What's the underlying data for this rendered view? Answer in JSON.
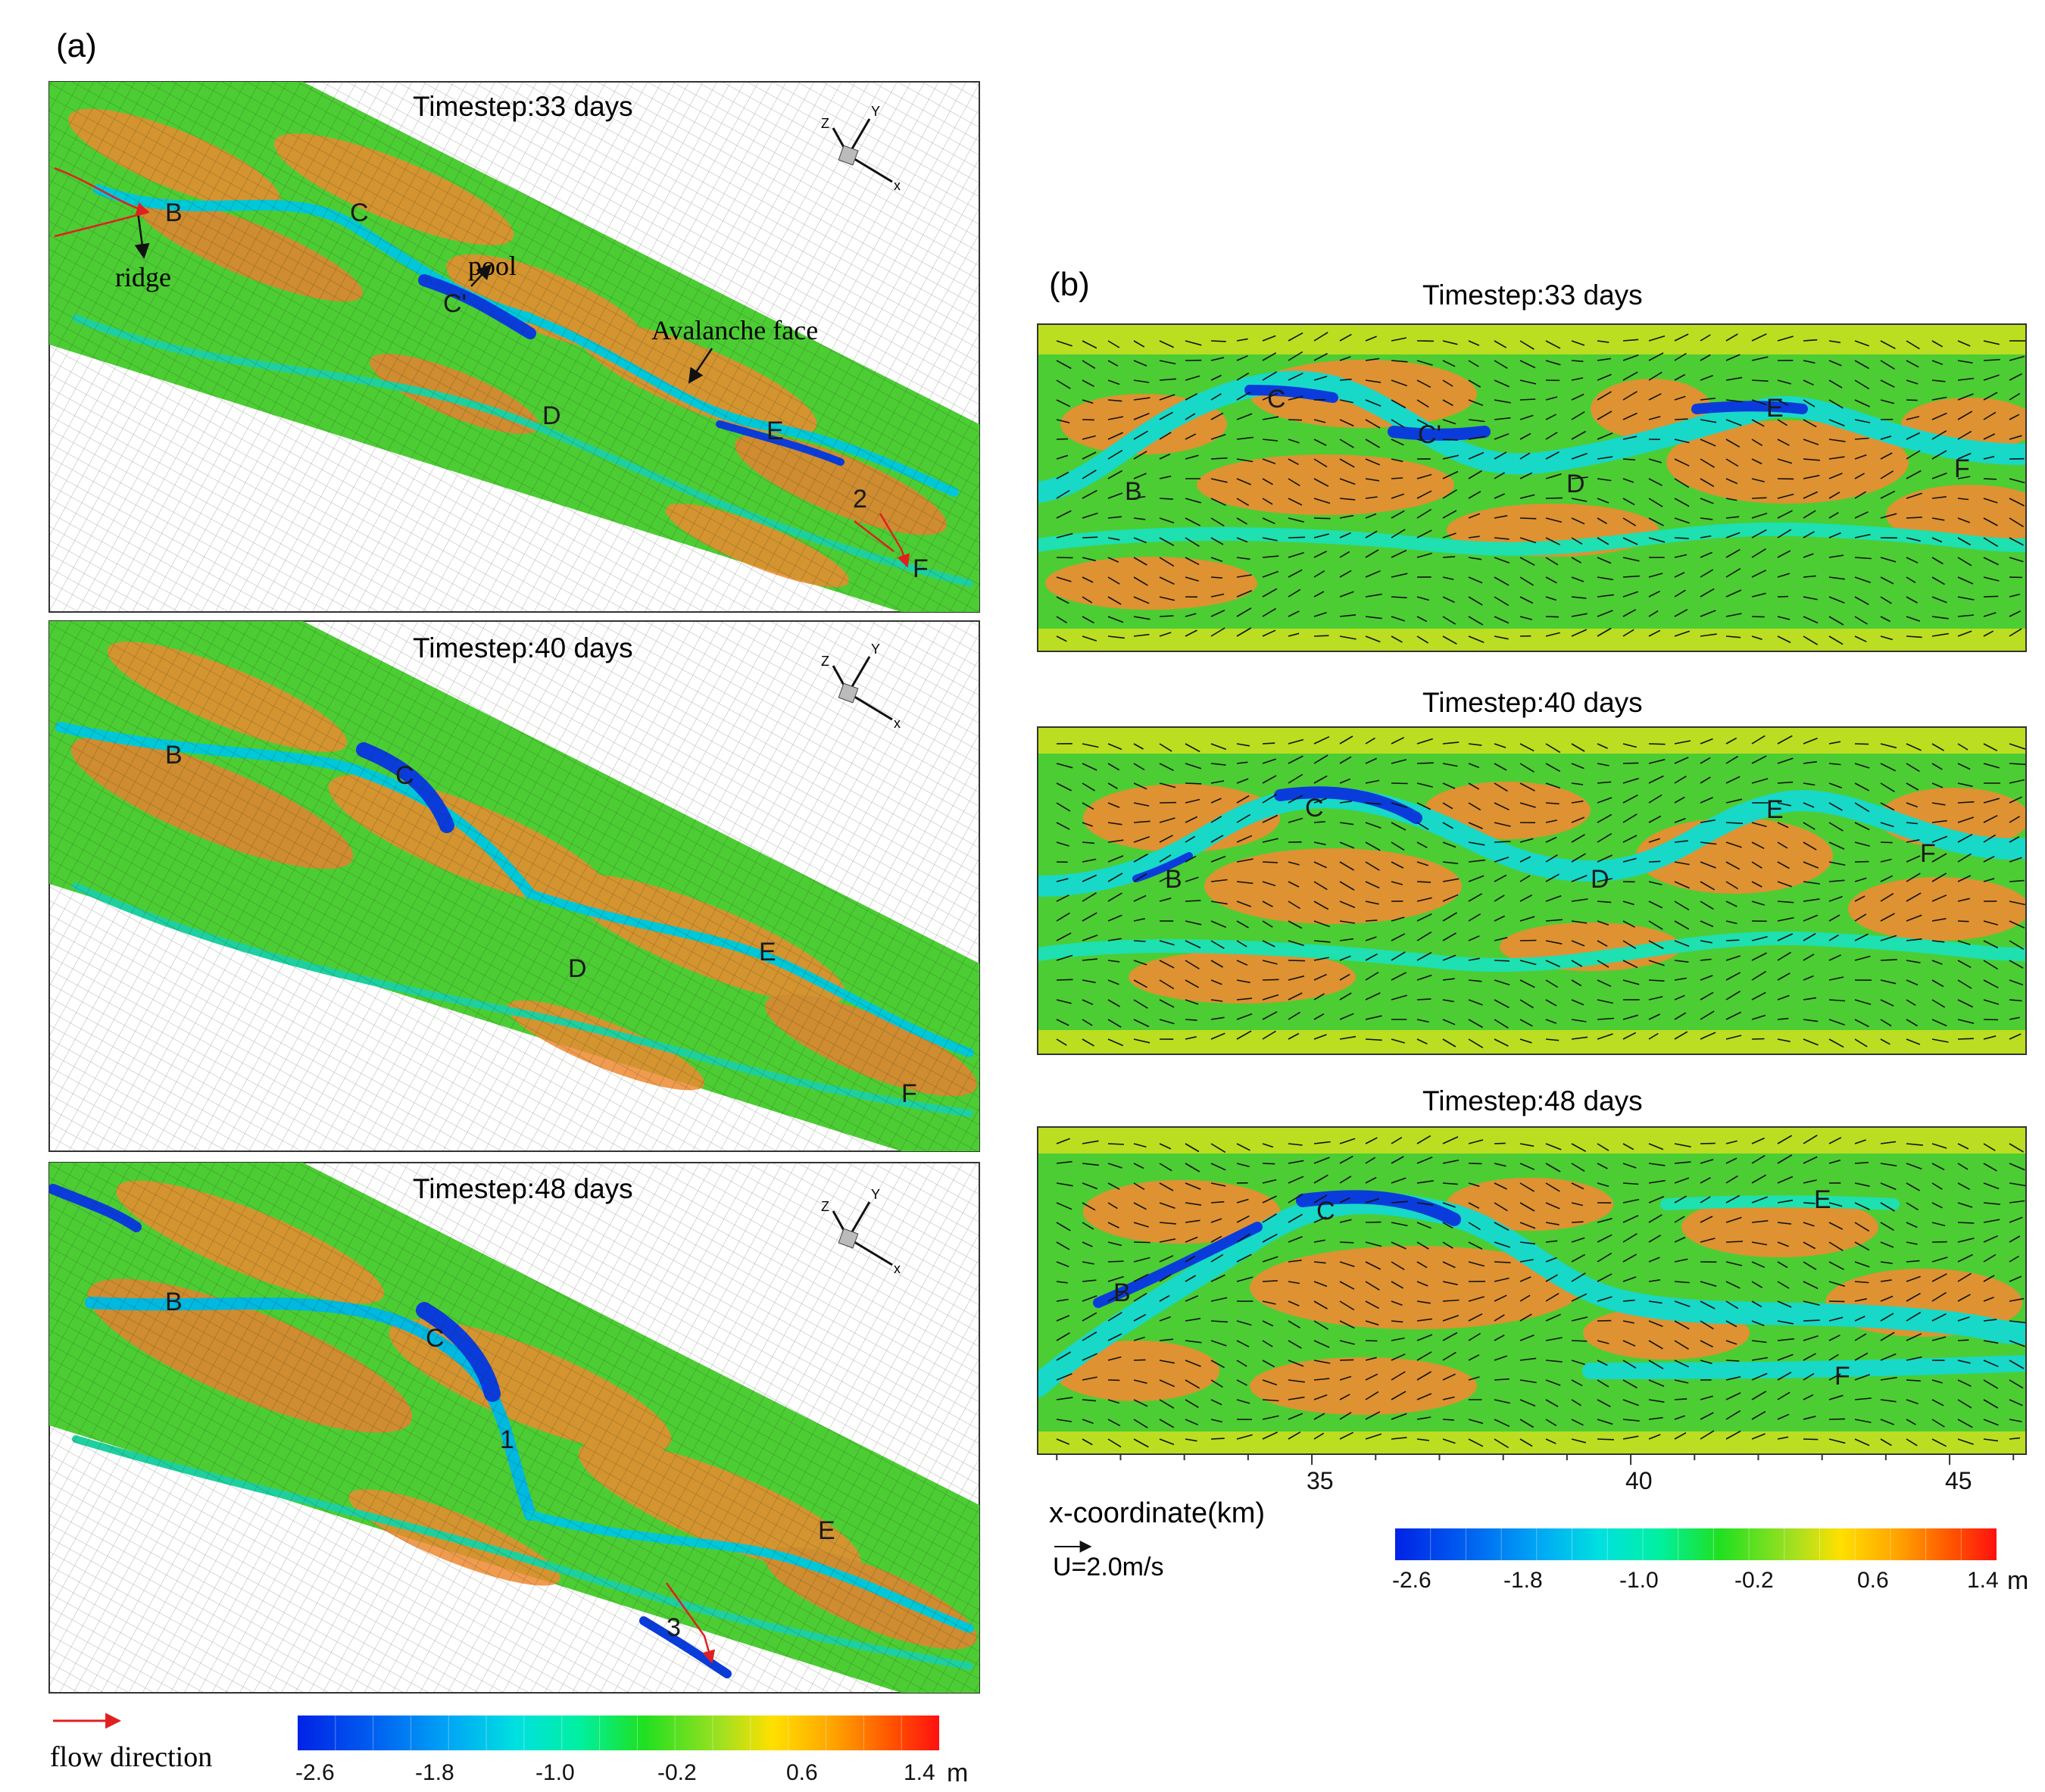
{
  "panel_a": {
    "label": "(a)",
    "frames": [
      {
        "title": "Timestep:33 days",
        "point_labels": [
          "B",
          "C",
          "C'",
          "D",
          "E",
          "F",
          "2"
        ],
        "annotations": [
          "ridge",
          "pool",
          "Avalanche face"
        ]
      },
      {
        "title": "Timestep:40 days",
        "point_labels": [
          "B",
          "C",
          "D",
          "E",
          "F"
        ],
        "annotations": []
      },
      {
        "title": "Timestep:48 days",
        "point_labels": [
          "B",
          "C",
          "1",
          "E",
          "3"
        ],
        "annotations": []
      }
    ],
    "axis_triad": {
      "x": "x",
      "y": "Y",
      "z": "Z"
    },
    "legend_label": "flow direction",
    "colorbar": {
      "ticks": [
        "-2.6",
        "-1.8",
        "-1.0",
        "-0.2",
        "0.6",
        "1.4"
      ],
      "unit": "m",
      "colors": [
        "#0022e6",
        "#0050f0",
        "#0080f5",
        "#00a8f5",
        "#00d0f0",
        "#00e8d0",
        "#00f0a0",
        "#00e860",
        "#20e020",
        "#60e020",
        "#a0e020",
        "#d8e820",
        "#ffd800",
        "#ffa800",
        "#ff7800",
        "#ff4800",
        "#ff1010"
      ]
    }
  },
  "panel_b": {
    "label": "(b)",
    "frames": [
      {
        "title": "Timestep:33 days",
        "point_labels": [
          "B",
          "C",
          "C'",
          "D",
          "E",
          "F"
        ]
      },
      {
        "title": "Timestep:40 days",
        "point_labels": [
          "B",
          "C",
          "D",
          "E",
          "F"
        ]
      },
      {
        "title": "Timestep:48 days",
        "point_labels": [
          "B",
          "C",
          "E",
          "F"
        ]
      }
    ],
    "x_ticks": [
      "35",
      "40",
      "45"
    ],
    "x_label": "x-coordinate(km)",
    "vector_legend": "U=2.0m/s",
    "colorbar": {
      "ticks": [
        "-2.6",
        "-1.8",
        "-1.0",
        "-0.2",
        "0.6",
        "1.4"
      ],
      "unit": "m"
    }
  },
  "colors": {
    "pool": "#0a3cdc",
    "channel": "#18d8c8",
    "slope": "#3cd23c",
    "bar": "#f08c32",
    "flow_arrow": "#e02020"
  }
}
